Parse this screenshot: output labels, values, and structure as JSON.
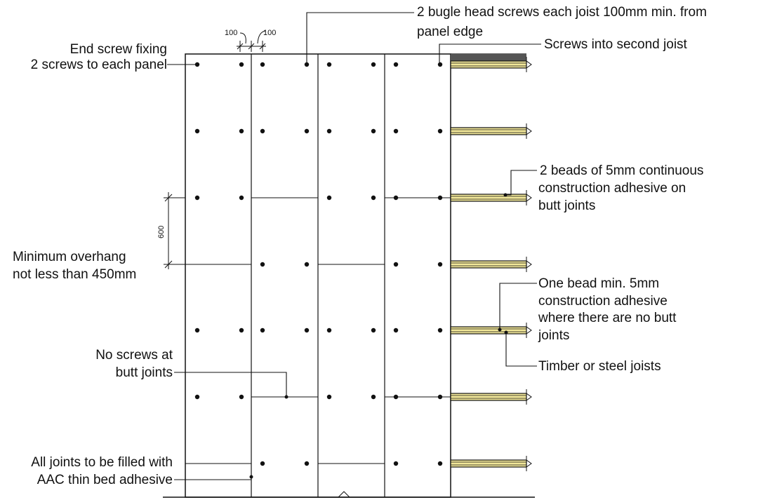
{
  "labels": {
    "end_screw_1": "End screw fixing",
    "end_screw_2": "2 screws to each panel",
    "bugle_1": "2 bugle head screws each joist 100mm min. from",
    "bugle_2": "panel edge",
    "second_joist": "Screws into second joist",
    "beads_1": "2 beads of 5mm continuous",
    "beads_2": "construction adhesive on",
    "beads_3": "butt joints",
    "overhang_1": "Minimum overhang",
    "overhang_2": "not less than 450mm",
    "one_bead_1": "One bead min. 5mm",
    "one_bead_2": "construction adhesive",
    "one_bead_3": "where there are no butt",
    "one_bead_4": "joints",
    "joists": "Timber or steel joists",
    "no_screws_1": "No screws at",
    "no_screws_2": "butt joints",
    "joints_1": "All joints to be filled with",
    "joints_2": "AAC thin bed adhesive"
  },
  "dimensions": {
    "edge_a": "100",
    "edge_b": "100",
    "spacing": "600"
  },
  "colors": {
    "line": "#111111",
    "joist_fill": "#f2e89a",
    "joist_cap": "#555555"
  }
}
